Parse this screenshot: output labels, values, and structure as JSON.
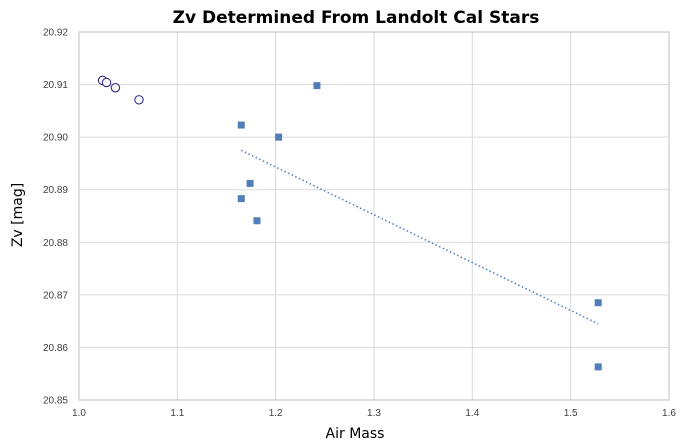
{
  "chart_data": {
    "type": "scatter",
    "title": "Zv Determined From Landolt Cal Stars",
    "xlabel": "Air Mass",
    "ylabel": "Zv [mag]",
    "xlim": [
      1.0,
      1.6
    ],
    "ylim": [
      20.85,
      20.92
    ],
    "xticks": [
      "1.0",
      "1.1",
      "1.2",
      "1.3",
      "1.4",
      "1.5",
      "1.6"
    ],
    "yticks": [
      "20.85",
      "20.86",
      "20.87",
      "20.88",
      "20.89",
      "20.90",
      "20.91",
      "20.92"
    ],
    "grid": true,
    "legend": "none",
    "series": [
      {
        "marker": "circle-open",
        "color": "#2e2a8a",
        "points": [
          {
            "x": 1.024,
            "y": 20.9108
          },
          {
            "x": 1.028,
            "y": 20.9104
          },
          {
            "x": 1.037,
            "y": 20.9094
          },
          {
            "x": 1.061,
            "y": 20.9071
          }
        ]
      },
      {
        "marker": "square",
        "color": "#4f7fb8",
        "points": [
          {
            "x": 1.165,
            "y": 20.9023
          },
          {
            "x": 1.203,
            "y": 20.9
          },
          {
            "x": 1.242,
            "y": 20.9098
          },
          {
            "x": 1.174,
            "y": 20.8912
          },
          {
            "x": 1.165,
            "y": 20.8883
          },
          {
            "x": 1.181,
            "y": 20.8841
          },
          {
            "x": 1.528,
            "y": 20.8685
          },
          {
            "x": 1.528,
            "y": 20.8563
          }
        ]
      }
    ],
    "trendline": {
      "style": "dotted",
      "color": "#4f7fb8",
      "from": {
        "x": 1.165,
        "y": 20.8975
      },
      "to": {
        "x": 1.528,
        "y": 20.8645
      }
    }
  }
}
